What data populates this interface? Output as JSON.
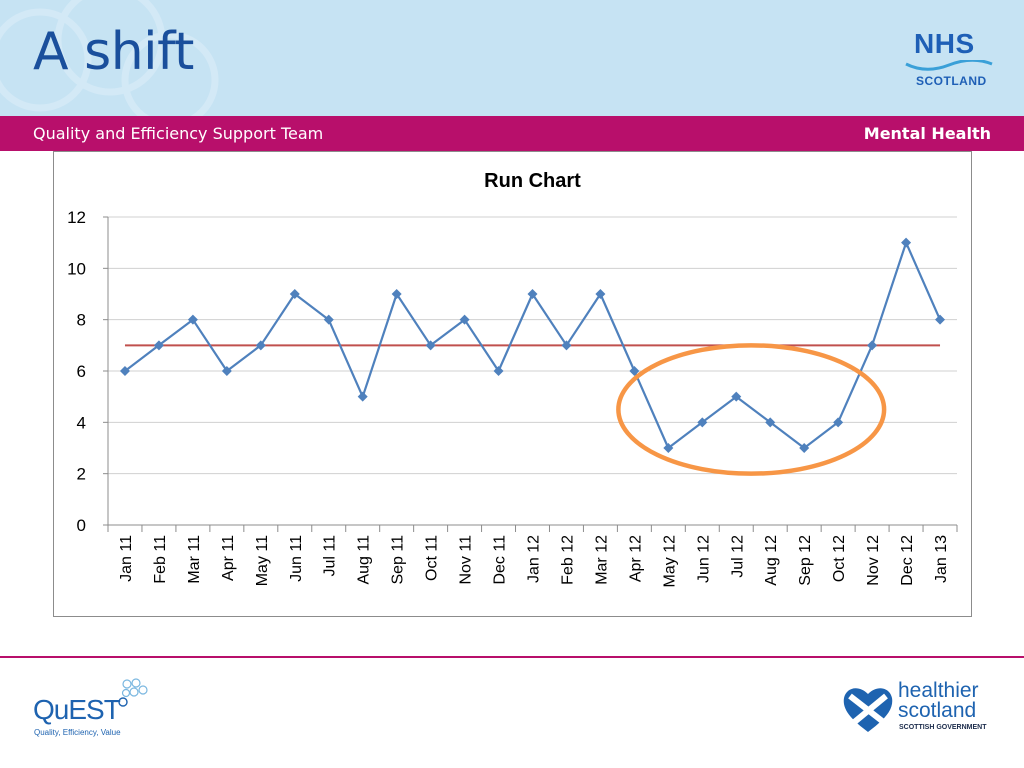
{
  "slide": {
    "title": "A shift",
    "band_left": "Quality and Efficiency Support Team",
    "band_right": "Mental Health"
  },
  "logos": {
    "nhs": {
      "name": "NHS",
      "sub": "SCOTLAND"
    },
    "quest": {
      "name": "QuEST",
      "tagline": "Quality, Efficiency, Value"
    },
    "healthier_scotland": {
      "line1": "healthier",
      "line2": "scotland",
      "line3": "SCOTTISH GOVERNMENT"
    }
  },
  "colors": {
    "header_bg": "#c6e3f3",
    "band": "#b80f6b",
    "title": "#1a4f9c",
    "series": "#4f81bd",
    "median": "#c0504d",
    "highlight": "#f79646"
  },
  "chart_data": {
    "type": "line",
    "title": "Run Chart",
    "xlabel": "",
    "ylabel": "",
    "ylim": [
      0,
      12
    ],
    "yticks": [
      0,
      2,
      4,
      6,
      8,
      10,
      12
    ],
    "grid": true,
    "legend": "none",
    "categories": [
      "Jan 11",
      "Feb 11",
      "Mar 11",
      "Apr 11",
      "May 11",
      "Jun 11",
      "Jul 11",
      "Aug 11",
      "Sep 11",
      "Oct 11",
      "Nov 11",
      "Dec 11",
      "Jan 12",
      "Feb 12",
      "Mar 12",
      "Apr 12",
      "May 12",
      "Jun 12",
      "Jul 12",
      "Aug 12",
      "Sep 12",
      "Oct 12",
      "Nov 12",
      "Dec 12",
      "Jan 13"
    ],
    "series": [
      {
        "values": [
          6,
          7,
          8,
          6,
          7,
          9,
          8,
          5,
          9,
          7,
          8,
          6,
          9,
          7,
          9,
          6,
          3,
          4,
          5,
          4,
          3,
          4,
          7,
          11,
          8
        ],
        "marker": "diamond"
      }
    ],
    "median_line": 7,
    "highlight_ellipse": {
      "from": "Apr 12",
      "to": "Nov 12",
      "y_range": [
        2,
        7
      ]
    }
  }
}
